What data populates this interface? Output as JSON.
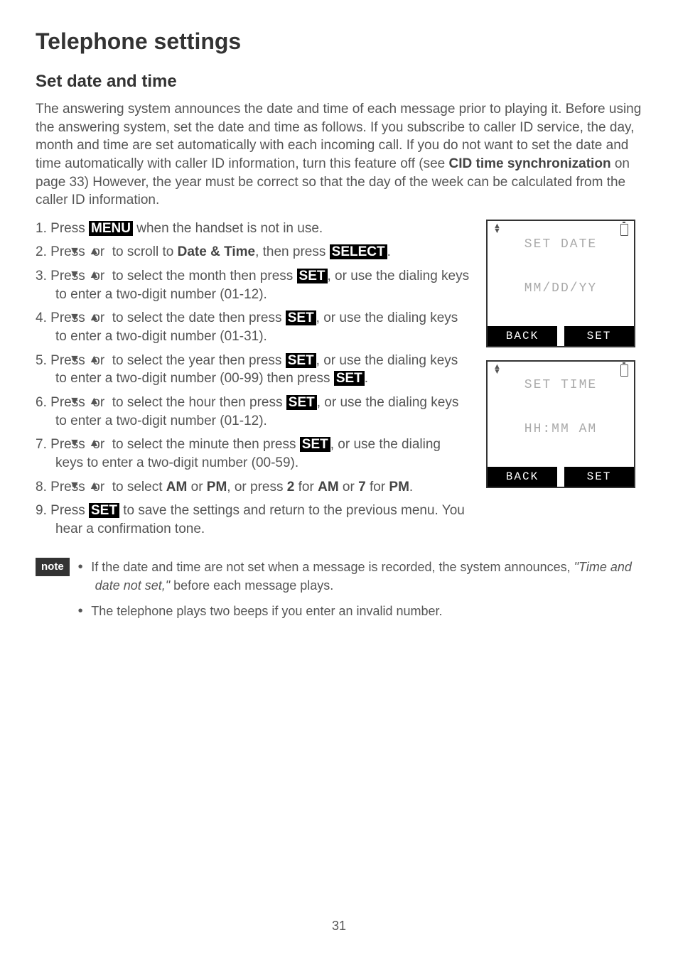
{
  "title": "Telephone settings",
  "heading": "Set date and time",
  "intro": {
    "p1a": "The answering system announces the date and time of each message prior to playing it. Before using the answering system, set the date and time as follows. If you subscribe to caller ID service, the day, month and time are set automatically with each incoming call. If you do not want to set the date and time automatically with caller ID information, turn this feature off (see ",
    "p1b": "CID time synchronization",
    "p1c": " on page 33) However, the year must be correct so that the day of the week can be calculated from the caller ID information."
  },
  "labels": {
    "menu": "MENU",
    "select": "SELECT",
    "set": "SET",
    "date_time": "Date & Time",
    "am": "AM",
    "pm": "PM",
    "two": "2",
    "seven": "7"
  },
  "steps": {
    "s1a": "Press ",
    "s1b": " when the handset is not in use.",
    "s2a": "Press ",
    "s2b": " or ",
    "s2c": " to scroll to ",
    "s2d": ", then press ",
    "s2e": ".",
    "s3a": "Press ",
    "s3b": " or ",
    "s3c": " to select the month then press ",
    "s3d": ", or use the dialing keys to enter a two-digit number (01-12).",
    "s4a": "Press ",
    "s4b": " or ",
    "s4c": " to select the date then press ",
    "s4d": ", or use the dialing keys to enter a two-digit number (01-31).",
    "s5a": "Press ",
    "s5b": " or ",
    "s5c": " to select the year then press ",
    "s5d": ", or use the dialing keys to enter a two-digit number (00-99) then press ",
    "s5e": ".",
    "s6a": "Press ",
    "s6b": " or ",
    "s6c": " to select the hour then press ",
    "s6d": ", or use the dialing keys to enter a two-digit number (01-12).",
    "s7a": "Press ",
    "s7b": " or ",
    "s7c": " to select the minute then press ",
    "s7d": ", or use the dialing keys to enter a two-digit number (00-59).",
    "s8a": "Press ",
    "s8b": " or ",
    "s8c": " to select ",
    "s8d": " or ",
    "s8e": ", or press ",
    "s8f": " for ",
    "s8g": " or ",
    "s8h": " for ",
    "s8i": ".",
    "s9a": "Press ",
    "s9b": " to save the settings and return to the previous menu. You hear a confirmation tone."
  },
  "screens": {
    "date": {
      "title": "SET DATE",
      "mid": "MM/DD/YY",
      "left": "BACK",
      "right": "SET"
    },
    "time": {
      "title": "SET TIME",
      "mid": "HH:MM AM",
      "left": "BACK",
      "right": "SET"
    }
  },
  "note_label": "note",
  "notes": {
    "n1a": "If the date and time are not set when a message is recorded, the system announces, ",
    "n1b": "\"Time and date not set,\"",
    "n1c": " before each message plays.",
    "n2": "The telephone plays two beeps if you enter an invalid number."
  },
  "page_number": "31",
  "glyphs": {
    "down": "▼",
    "up": "▲"
  }
}
